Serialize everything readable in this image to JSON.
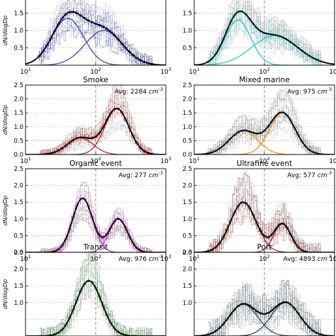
{
  "figure": {
    "ylabel": "dN/dlogDp",
    "x_ticks": [
      "10",
      "10",
      "10"
    ],
    "x_tick_exps": [
      "1",
      "2",
      "3"
    ],
    "avg_prefix": "Avg: ",
    "avg_unit": "cm",
    "avg_unit_exp": "-3"
  },
  "chart_data": [
    {
      "type": "line",
      "title": "",
      "avg": "",
      "xscale": "log",
      "xlim": [
        10,
        1000
      ],
      "ylim": [
        0,
        2.0
      ],
      "yticks": [
        "0.5",
        "1.0",
        "1.5"
      ],
      "vline": 100,
      "colors": {
        "mode": "#3a36b8",
        "data": "#2b2bb0",
        "total": "#000000"
      },
      "modes": [
        [
          1.35,
          40,
          0.55
        ],
        [
          1.0,
          130,
          0.65
        ]
      ],
      "spread": 0.45,
      "top_ticks": [
        "1.5"
      ]
    },
    {
      "type": "line",
      "title": "",
      "avg": "",
      "xscale": "log",
      "xlim": [
        10,
        1000
      ],
      "ylim": [
        0,
        2.0
      ],
      "yticks": [
        "0.5",
        "1.0",
        "1.5"
      ],
      "vline": 100,
      "colors": {
        "mode": "#20c4c8",
        "data": "#46b6b6",
        "total": "#000000"
      },
      "modes": [
        [
          1.3,
          42,
          0.45
        ],
        [
          0.85,
          140,
          0.8
        ]
      ],
      "spread": 0.55,
      "top_ticks": [
        "1.5"
      ]
    },
    {
      "type": "line",
      "title": "Smoke",
      "avg": "2284",
      "xscale": "log",
      "xlim": [
        10,
        1000
      ],
      "ylim": [
        0,
        2.5
      ],
      "yticks": [
        "0.0",
        "0.5",
        "1.0",
        "1.5",
        "2.0",
        "2.5"
      ],
      "vline": 100,
      "colors": {
        "mode": "#c02020",
        "data": "#b01818",
        "total": "#000000"
      },
      "modes": [
        [
          0.6,
          60,
          0.45
        ],
        [
          1.65,
          200,
          0.42
        ]
      ],
      "spread": 0.35
    },
    {
      "type": "line",
      "title": "Mixed marine",
      "avg": "975",
      "xscale": "log",
      "xlim": [
        10,
        1000
      ],
      "ylim": [
        0,
        2.5
      ],
      "yticks": [
        "0.0",
        "0.5",
        "1.0",
        "1.5",
        "2.0",
        "2.5"
      ],
      "vline": 100,
      "colors": {
        "mode": "#f08c10",
        "data": "#7a7a7a",
        "total": "#000000"
      },
      "modes": [
        [
          0.85,
          50,
          0.5
        ],
        [
          1.5,
          180,
          0.45
        ]
      ],
      "spread": 0.45
    },
    {
      "type": "line",
      "title": "Organic event",
      "avg": "277",
      "xscale": "log",
      "xlim": [
        10,
        1000
      ],
      "ylim": [
        0,
        2.5
      ],
      "yticks": [
        "0.0",
        "0.5",
        "1.0",
        "1.5",
        "2.0",
        "2.5"
      ],
      "vline": 100,
      "colors": {
        "mode": "#c020c0",
        "data": "#b030b0",
        "total": "#000000"
      },
      "modes": [
        [
          1.62,
          65,
          0.35
        ],
        [
          1.0,
          210,
          0.32
        ]
      ],
      "spread": 0.25
    },
    {
      "type": "line",
      "title": "Ultrafine event",
      "avg": "577",
      "xscale": "log",
      "xlim": [
        10,
        1000
      ],
      "ylim": [
        0,
        2.5
      ],
      "yticks": [
        "0.0",
        "0.5",
        "1.0",
        "1.5",
        "2.0",
        "2.5"
      ],
      "vline": 100,
      "colors": {
        "mode": "#a02020",
        "data": "#8a1c1c",
        "total": "#000000"
      },
      "modes": [
        [
          1.5,
          50,
          0.45
        ],
        [
          0.85,
          180,
          0.3
        ]
      ],
      "spread": 0.55
    },
    {
      "type": "line",
      "title": "Transit",
      "avg": "976",
      "xscale": "log",
      "xlim": [
        10,
        1000
      ],
      "ylim": [
        0,
        2.5
      ],
      "yticks": [
        "1.0",
        "1.5",
        "2.0",
        "2.5"
      ],
      "vline": 100,
      "colors": {
        "mode": "#2a8a2a",
        "data": "#2a8a2a",
        "total": "#000000"
      },
      "modes": [
        [
          1.65,
          80,
          0.45
        ]
      ],
      "spread": 0.5
    },
    {
      "type": "line",
      "title": "Port",
      "avg": "4893",
      "xscale": "log",
      "xlim": [
        10,
        1000
      ],
      "ylim": [
        0,
        2.5
      ],
      "yticks": [
        "1.0",
        "1.5",
        "2.0",
        "2.5"
      ],
      "vline": 100,
      "colors": {
        "mode": "#2a3a5a",
        "data": "#4a5a70",
        "total": "#000000"
      },
      "modes": [
        [
          0.95,
          50,
          0.5
        ],
        [
          1.0,
          200,
          0.5
        ]
      ],
      "spread": 0.8
    }
  ]
}
